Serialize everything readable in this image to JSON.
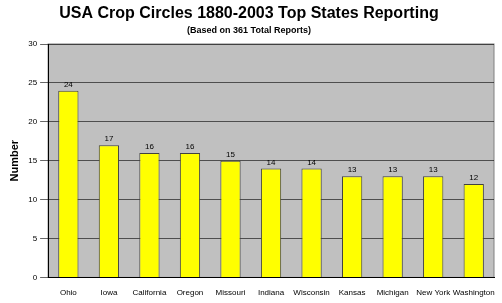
{
  "chart_data": {
    "type": "bar",
    "title": "USA Crop Circles 1880-2003 Top States Reporting",
    "subtitle": "(Based on 361 Total Reports)",
    "y_label": "Number",
    "categories": [
      "Ohio",
      "Iowa",
      "California",
      "Oregon",
      "Missouri",
      "Indiana",
      "Wisconsin",
      "Kansas",
      "Michigan",
      "New York",
      "Washington"
    ],
    "values": [
      24,
      17,
      16,
      16,
      15,
      14,
      14,
      13,
      13,
      13,
      12
    ],
    "color": "#ffff00",
    "ylim": [
      0,
      30
    ],
    "yticks": [
      0,
      5,
      10,
      15,
      20,
      25,
      30
    ],
    "grid": true,
    "data_labels": true
  }
}
